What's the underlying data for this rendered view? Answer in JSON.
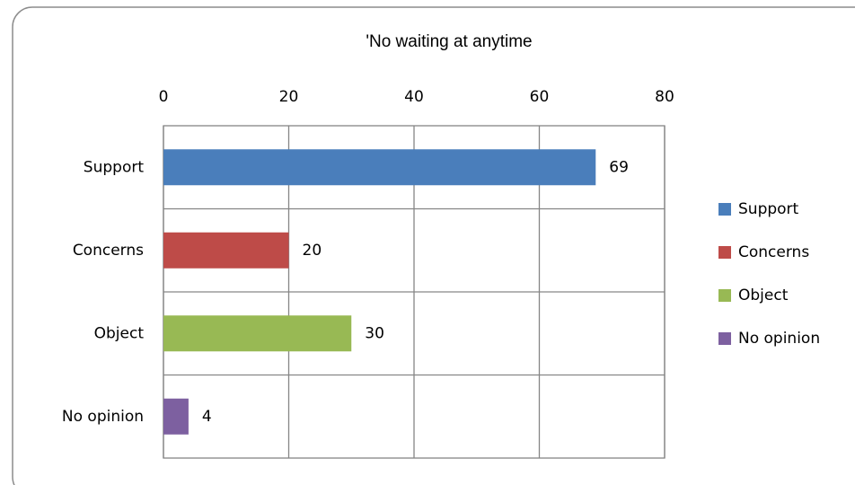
{
  "chart_data": {
    "type": "hbar",
    "title": "'No waiting at anytime",
    "categories": [
      "Support",
      "Concerns",
      "Object",
      "No opinion"
    ],
    "values": [
      69,
      20,
      30,
      4
    ],
    "colors": [
      "#4a7ebb",
      "#be4b48",
      "#98b954",
      "#7d60a0"
    ],
    "xlim": [
      0,
      80
    ],
    "xticks": [
      0,
      20,
      40,
      60,
      80
    ],
    "grid": true,
    "legend": "right"
  }
}
